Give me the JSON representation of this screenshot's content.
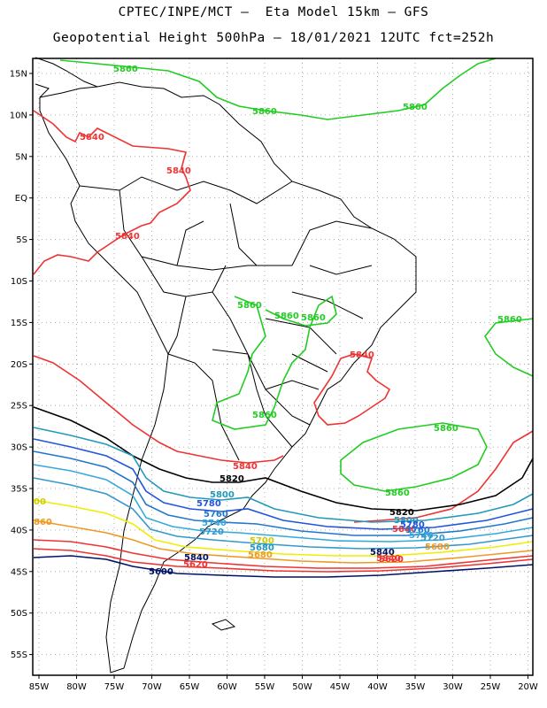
{
  "header": {
    "line1": "CPTEC/INPE/MCT –  Eta Model 15km – GFS",
    "line2": "Geopotential Height 500hPa – 18/01/2021 12UTC fct=252h"
  },
  "axes": {
    "lat_labels": [
      "15N",
      "10N",
      "5N",
      "EQ",
      "5S",
      "10S",
      "15S",
      "20S",
      "25S",
      "30S",
      "35S",
      "40S",
      "45S",
      "50S",
      "55S"
    ],
    "lon_labels": [
      "85W",
      "80W",
      "75W",
      "70W",
      "65W",
      "60W",
      "55W",
      "50W",
      "45W",
      "40W",
      "35W",
      "30W",
      "25W",
      "20W"
    ]
  },
  "colors": {
    "c5860": "#22cc22",
    "c5840": "#ee3333",
    "c5820": "#000000",
    "c5800": "#2299bb",
    "c5780": "#2255dd",
    "c5760": "#2277cc",
    "c5740": "#33aadd",
    "c5720": "#3399cc",
    "c5700": "#eeee00",
    "c5680": "#ee9922",
    "c5620": "#ee3333",
    "c5600": "#001166"
  },
  "contour_labels": {
    "l5860_a": "5860",
    "l5860_b": "5860",
    "l5860_c": "5860",
    "l5860_d": "5860",
    "l5860_e": "5860",
    "l5860_f": "5860",
    "l5860_g": "5860",
    "l5860_h": "5860",
    "l5860_i": "5860",
    "l5860_j": "5860",
    "l5840_a": "5840",
    "l5840_b": "5840",
    "l5840_c": "5840",
    "l5840_d": "5840",
    "l5840_e": "5840",
    "l5840_f": "5840",
    "l5840_g": "5840",
    "l5840_h": "5840",
    "l5840_i": "5840",
    "l5820_a": "5820",
    "l5820_b": "5820",
    "l5800_a": "5800",
    "l5800_b": "5800",
    "l5780_a": "5780",
    "l5780_b": "5780",
    "l5760_a": "5760",
    "l5760_b": "5760",
    "l5740_a": "5740",
    "l5740_b": "5740",
    "l5720_a": "5720",
    "l5720_b": "5720",
    "l5700_a": "5700",
    "l5700_b": "00",
    "l5680_a": "5680",
    "l5680_b": "5680",
    "l5680_c": "5680",
    "l5680_d": "860",
    "l5620_a": "5620",
    "l5620_b": "5620",
    "l5600_a": "5600"
  }
}
